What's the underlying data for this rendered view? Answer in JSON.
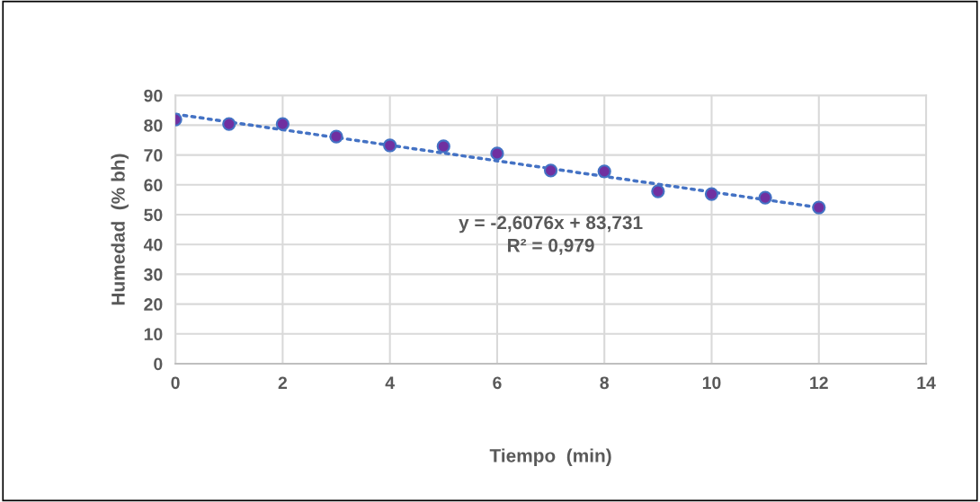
{
  "chart_data": {
    "type": "scatter",
    "xlabel": "Tiempo  (min)",
    "ylabel": "Humedad  (% bh)",
    "x": [
      0,
      1,
      2,
      3,
      4,
      5,
      6,
      7,
      8,
      9,
      10,
      11,
      12
    ],
    "series": [
      {
        "color": "#7030a0",
        "values": [
          81.9,
          80.4,
          80.4,
          76.2,
          73.2,
          72.9,
          70.5,
          64.8,
          64.5,
          57.8,
          56.9,
          55.7,
          52.4
        ],
        "marker": "circle"
      },
      {
        "type": "line",
        "color": "#4472c4",
        "x": [
          0,
          12
        ],
        "values": [
          83.7,
          52.4
        ],
        "line_style": "dotted",
        "marker": "none"
      }
    ],
    "annotations": [
      "y = -2,6076x + 83,731",
      "R² = 0,979"
    ],
    "xlim": [
      0,
      14
    ],
    "xticks": [
      0,
      2,
      4,
      6,
      8,
      10,
      12,
      14
    ],
    "ylim": [
      0,
      90
    ],
    "yticks": [
      0,
      10,
      20,
      30,
      40,
      50,
      60,
      70,
      80,
      90
    ],
    "grid": true,
    "legend": false
  }
}
